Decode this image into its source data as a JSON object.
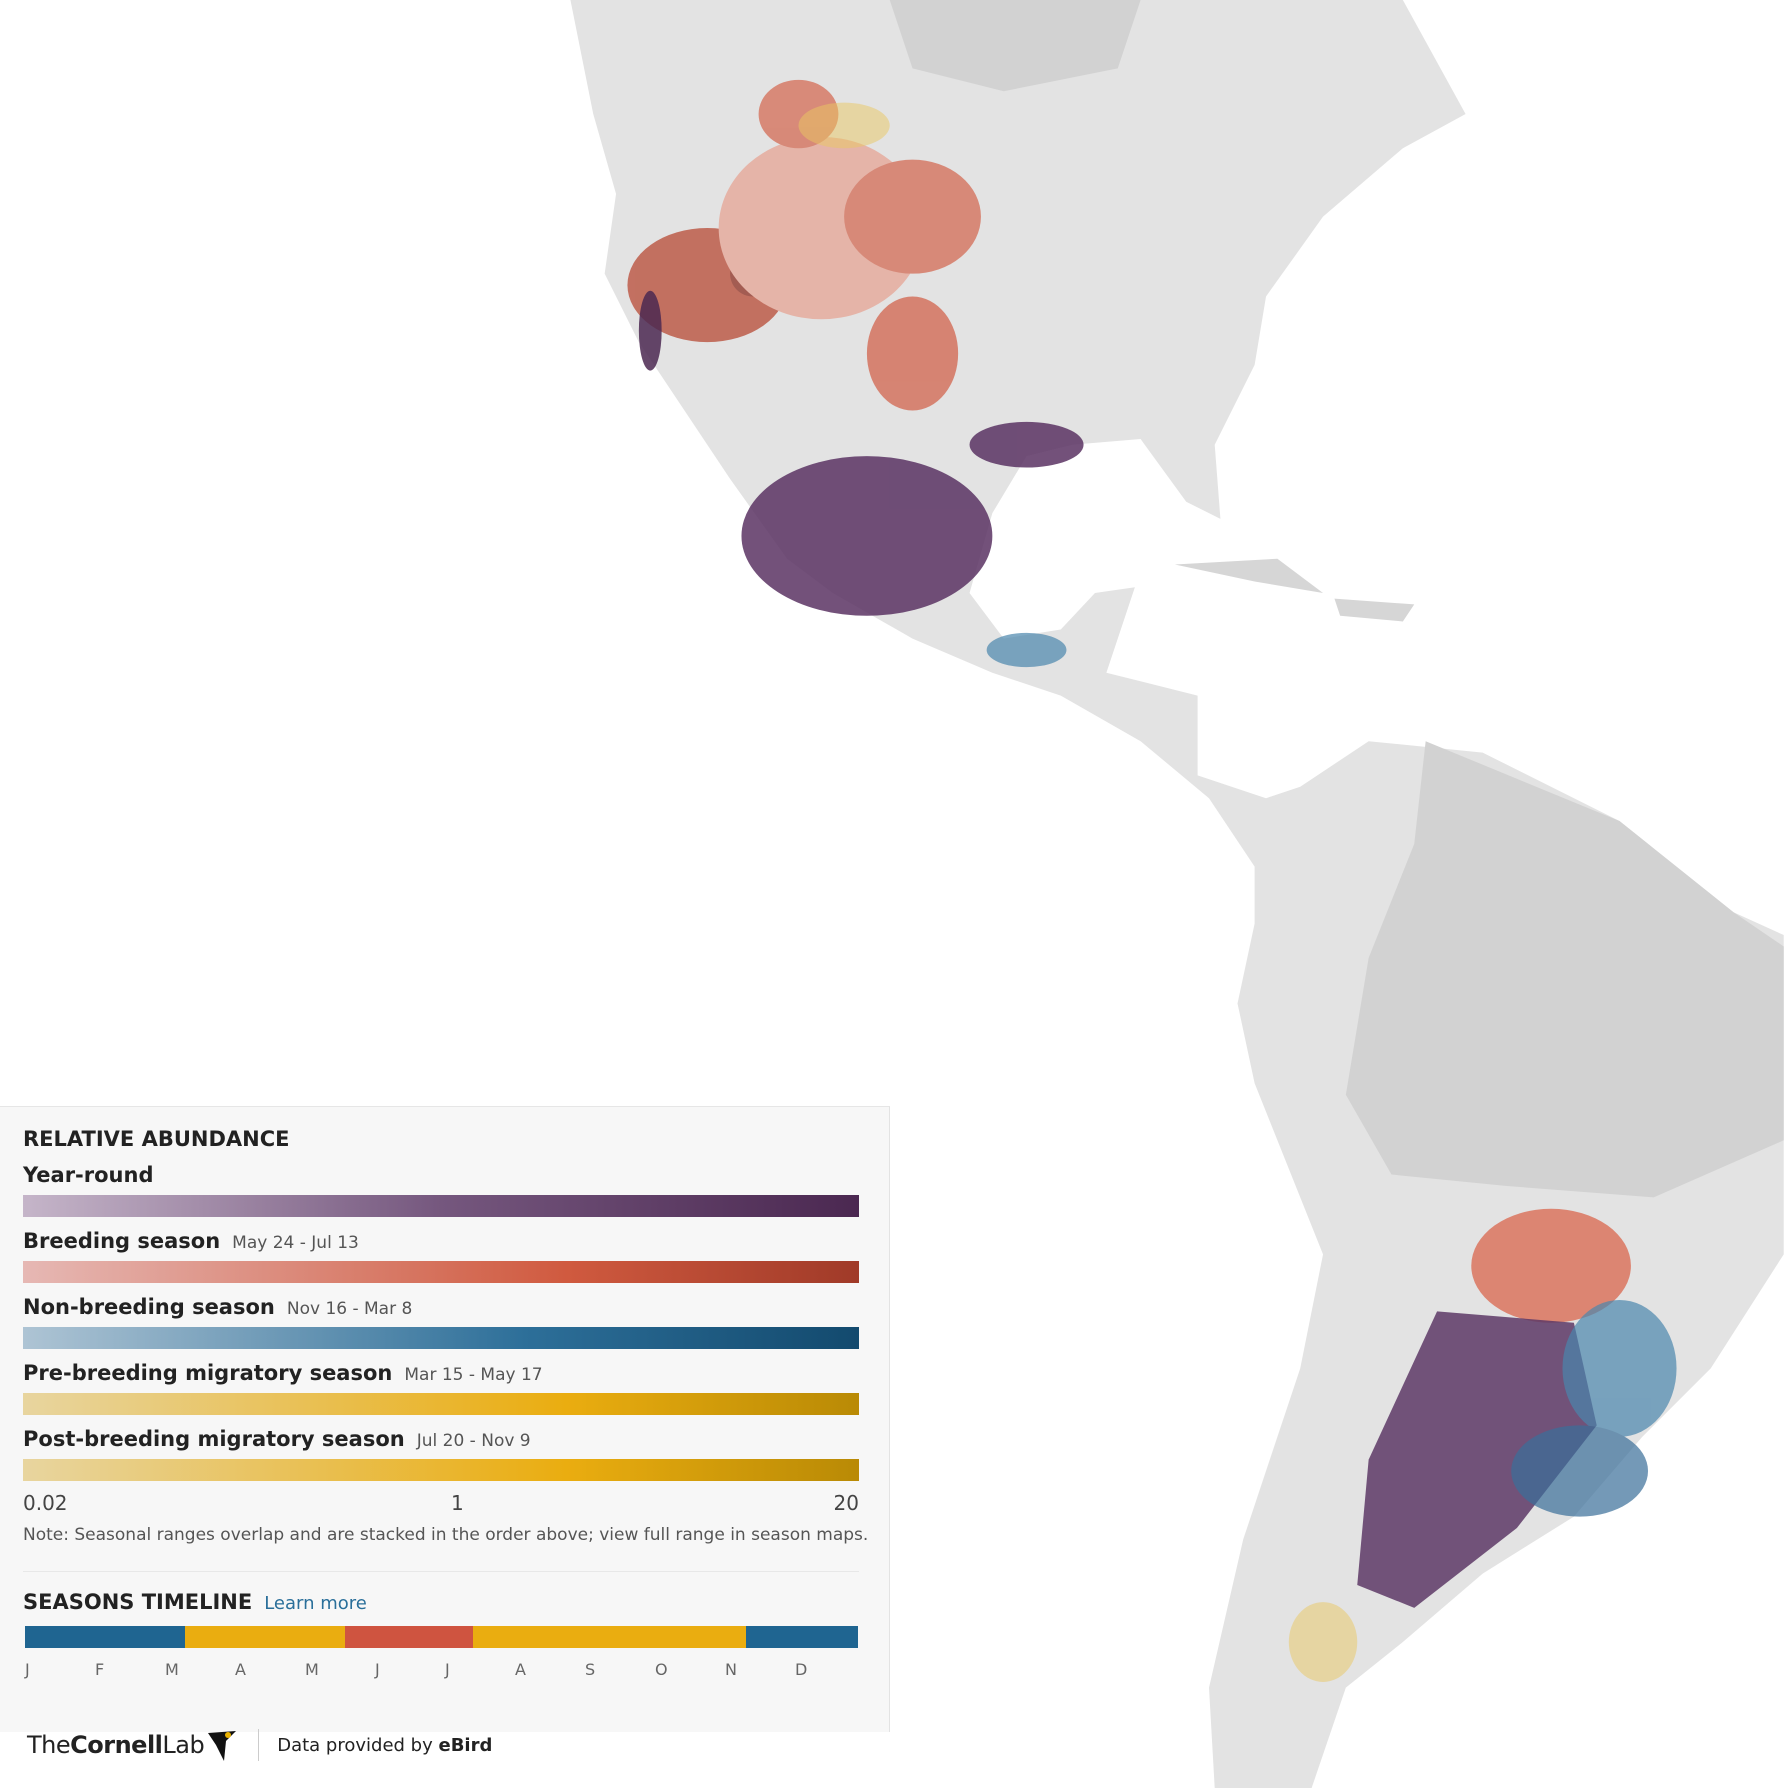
{
  "legend": {
    "title": "RELATIVE ABUNDANCE",
    "seasons": [
      {
        "name": "Year-round"
      },
      {
        "name": "Breeding season",
        "dates": "May 24 - Jul 13"
      },
      {
        "name": "Non-breeding season",
        "dates": "Nov 16 - Mar 8"
      },
      {
        "name": "Pre-breeding migratory season",
        "dates": "Mar 15 - May 17"
      },
      {
        "name": "Post-breeding migratory season",
        "dates": "Jul 20 - Nov 9"
      }
    ],
    "scale": {
      "min": 0.02,
      "mid": 1,
      "max": 20
    },
    "note": "Note: Seasonal ranges overlap and are stacked in the order above; view full range in season maps."
  },
  "timeline": {
    "title": "SEASONS TIMELINE",
    "link": "Learn more",
    "months": [
      "J",
      "F",
      "M",
      "A",
      "M",
      "J",
      "J",
      "A",
      "S",
      "O",
      "N",
      "D"
    ]
  },
  "footer": {
    "logo_the": "The",
    "logo_cornell": "Cornell",
    "logo_lab": "Lab",
    "credit": "Data provided by",
    "credit_brand": "eBird"
  }
}
